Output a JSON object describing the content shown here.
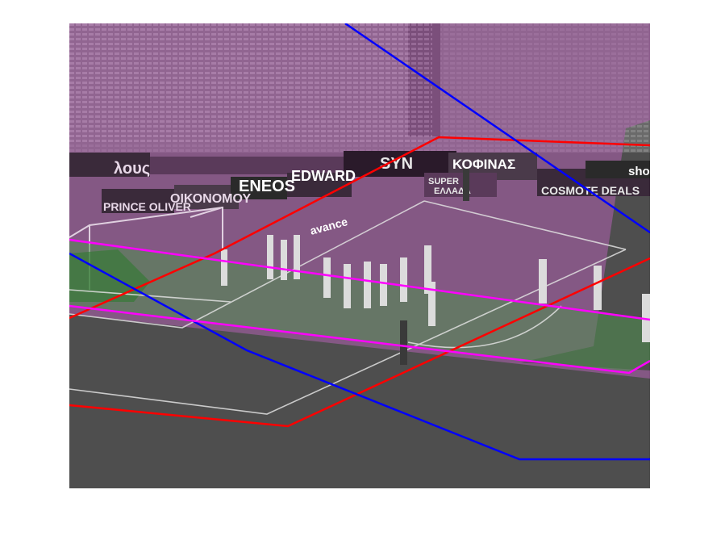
{
  "figure": {
    "description_colors": {
      "red_region": "#ff0000",
      "blue_region": "#0000ff",
      "magenta_region": "#ff00ff",
      "magenta_tint": "#c060c0",
      "green_tint": "#4a8a4a",
      "pitch_gray": "#5a5a5a"
    },
    "ad_boards": {
      "b1": "λους",
      "b2": "PRINCE OLIVER",
      "b3": "ΟΙΚΟΝΟΜΟΥ",
      "b4": "ENEOS",
      "b5": "EDWARD",
      "b6": "SYN",
      "b7": "ΚΟΦΙΝΑΣ",
      "b8": "COSMOTE DEALS",
      "b9": "sho",
      "b10": "SUPER",
      "b11": "ΕΛΛΑΔΑ",
      "b12": "avance"
    }
  }
}
